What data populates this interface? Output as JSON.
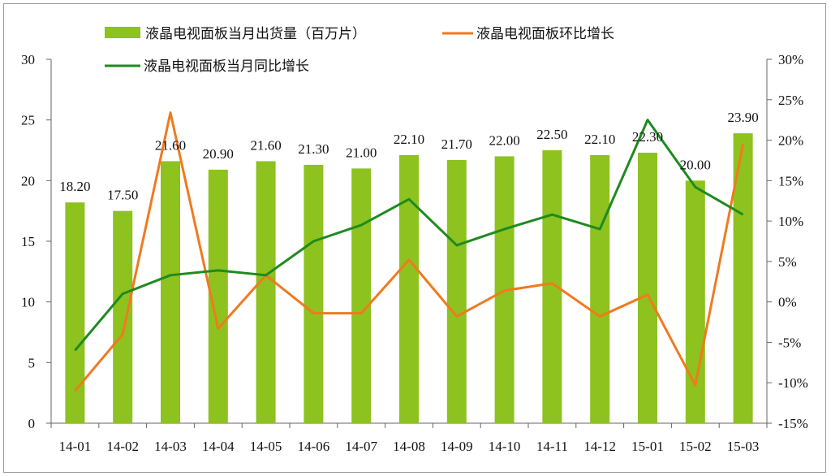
{
  "chart_data": {
    "type": "bar",
    "categories": [
      "14-01",
      "14-02",
      "14-03",
      "14-04",
      "14-05",
      "14-06",
      "14-07",
      "14-08",
      "14-09",
      "14-10",
      "14-11",
      "14-12",
      "15-01",
      "15-02",
      "15-03"
    ],
    "series": [
      {
        "name": "液晶电视面板当月出货量（百万片）",
        "type": "bar",
        "axis": "left",
        "color": "#8dc21f",
        "values": [
          18.2,
          17.5,
          21.6,
          20.9,
          21.6,
          21.3,
          21.0,
          22.1,
          21.7,
          22.0,
          22.5,
          22.1,
          22.3,
          20.0,
          23.9
        ],
        "labels": [
          "18.20",
          "17.50",
          "21.60",
          "20.90",
          "21.60",
          "21.30",
          "21.00",
          "22.10",
          "21.70",
          "22.00",
          "22.50",
          "22.10",
          "22.30",
          "20.00",
          "23.90"
        ]
      },
      {
        "name": "液晶电视面板环比增长",
        "type": "line",
        "axis": "right",
        "color": "#f07a1f",
        "values": [
          -11.0,
          -4.0,
          23.4,
          -3.3,
          3.3,
          -1.4,
          -1.4,
          5.2,
          -1.8,
          1.4,
          2.3,
          -1.8,
          0.9,
          -10.3,
          19.5
        ]
      },
      {
        "name": "液晶电视面板当月同比增长",
        "type": "line",
        "axis": "right",
        "color": "#1f8a1f",
        "values": [
          -6.0,
          1.0,
          3.3,
          3.9,
          3.3,
          7.5,
          9.5,
          12.7,
          7.0,
          9.0,
          10.8,
          9.0,
          22.5,
          14.2,
          10.8
        ]
      }
    ],
    "y_left": {
      "min": 0,
      "max": 30,
      "ticks": [
        "0",
        "5",
        "10",
        "15",
        "20",
        "25",
        "30"
      ]
    },
    "y_right": {
      "min": -15,
      "max": 30,
      "ticks": [
        "-15%",
        "-10%",
        "-5%",
        "0%",
        "5%",
        "10%",
        "15%",
        "20%",
        "25%",
        "30%"
      ]
    },
    "legend_position": "top",
    "grid": false
  }
}
